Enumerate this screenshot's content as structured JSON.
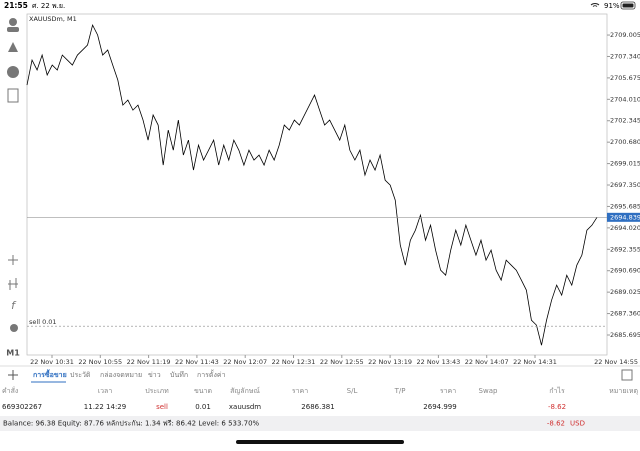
{
  "status_bar": {
    "time": "21:55",
    "date": "ศ. 22 พ.ย.",
    "battery": "91%"
  },
  "timeframe": "M1",
  "chart_data": {
    "type": "line",
    "title": "XAUUSDm, M1",
    "series": [
      {
        "name": "XAUUSDm",
        "color": "#000000",
        "values": [
          2705.12,
          2707.06,
          2706.29,
          2707.45,
          2705.9,
          2706.67,
          2706.29,
          2707.45,
          2707.06,
          2706.67,
          2707.45,
          2707.84,
          2708.23,
          2709.78,
          2709.01,
          2707.45,
          2707.84,
          2706.67,
          2705.51,
          2703.56,
          2703.95,
          2703.17,
          2703.56,
          2702.4,
          2700.84,
          2702.79,
          2702.01,
          2698.9,
          2701.62,
          2700.06,
          2702.4,
          2699.68,
          2700.84,
          2698.51,
          2700.45,
          2699.29,
          2700.06,
          2700.84,
          2698.9,
          2700.45,
          2699.29,
          2700.84,
          2700.06,
          2698.9,
          2700.06,
          2699.29,
          2699.68,
          2698.9,
          2700.06,
          2699.29,
          2700.45,
          2702.01,
          2701.62,
          2702.4,
          2702.01,
          2702.79,
          2703.56,
          2704.34,
          2703.17,
          2702.01,
          2702.4,
          2701.62,
          2700.84,
          2702.01,
          2700.06,
          2699.29,
          2700.06,
          2698.12,
          2699.29,
          2698.51,
          2699.68,
          2697.73,
          2697.34,
          2696.18,
          2692.68,
          2691.12,
          2693.06,
          2693.84,
          2695.01,
          2693.06,
          2694.23,
          2692.29,
          2690.73,
          2690.34,
          2692.29,
          2693.84,
          2692.68,
          2694.23,
          2693.06,
          2691.9,
          2693.06,
          2691.51,
          2692.29,
          2690.73,
          2689.96,
          2691.51,
          2691.12,
          2690.73,
          2689.96,
          2689.18,
          2686.85,
          2686.46,
          2684.9,
          2686.85,
          2688.4,
          2689.57,
          2688.79,
          2690.34,
          2689.57,
          2691.12,
          2691.9,
          2693.84,
          2694.23,
          2694.84
        ]
      }
    ],
    "ylim": [
      2684.14,
      2710.64
    ],
    "yticks": [
      2709.005,
      {
        "value": 2707.34,
        "label": "2707.340"
      },
      2705.675,
      {
        "value": 2704.01,
        "label": "2704.010"
      },
      2702.345,
      {
        "value": 2700.68,
        "label": "2700.680"
      },
      2699.015,
      {
        "value": 2697.35,
        "label": "2697.350"
      },
      2695.685,
      {
        "value": 2694.02,
        "label": "2694.020"
      },
      2692.355,
      {
        "value": 2690.69,
        "label": "2690.690"
      },
      2689.025,
      {
        "value": 2687.36,
        "label": "2687.360"
      },
      2685.695
    ],
    "xtick_labels": [
      "22 Nov 10:31",
      "22 Nov 10:55",
      "22 Nov 11:19",
      "22 Nov 11:43",
      "22 Nov 12:07",
      "22 Nov 12:31",
      "22 Nov 12:55",
      "22 Nov 13:19",
      "22 Nov 13:43",
      "22 Nov 14:07",
      "22 Nov 14:31",
      "22 Nov 14:55"
    ],
    "price_line": {
      "value": 2694.839,
      "color": "#2f6fc1"
    },
    "order_line": {
      "label": "sell 0.01",
      "value": 2686.381
    }
  },
  "tabs": [
    "การซื้อขาย",
    "ประวัติ",
    "กล่องจดหมาย",
    "ข่าว",
    "บันทึก",
    "การตั้งค่า"
  ],
  "table": {
    "header": [
      "คำสั่ง",
      "เวลา",
      "ประเภท",
      "ขนาด",
      "สัญลักษณ์",
      "ราคา",
      "S/L",
      "T/P",
      "ราคา",
      "Swap",
      "กำไร",
      "หมายเหตุ"
    ],
    "rows": [
      [
        "669302267",
        "11.22 14:29",
        "sell",
        "0.01",
        "xauusdm",
        "2686.381",
        null,
        null,
        "2694.999",
        null,
        "-8.62",
        null
      ]
    ]
  },
  "footer": {
    "summary": "Balance: 96.38 Equity: 87.76 หลักประกัน: 1.34 ฟรี: 86.42 Level: 6 533.70%",
    "profit": "-8.62",
    "currency": "USD"
  }
}
